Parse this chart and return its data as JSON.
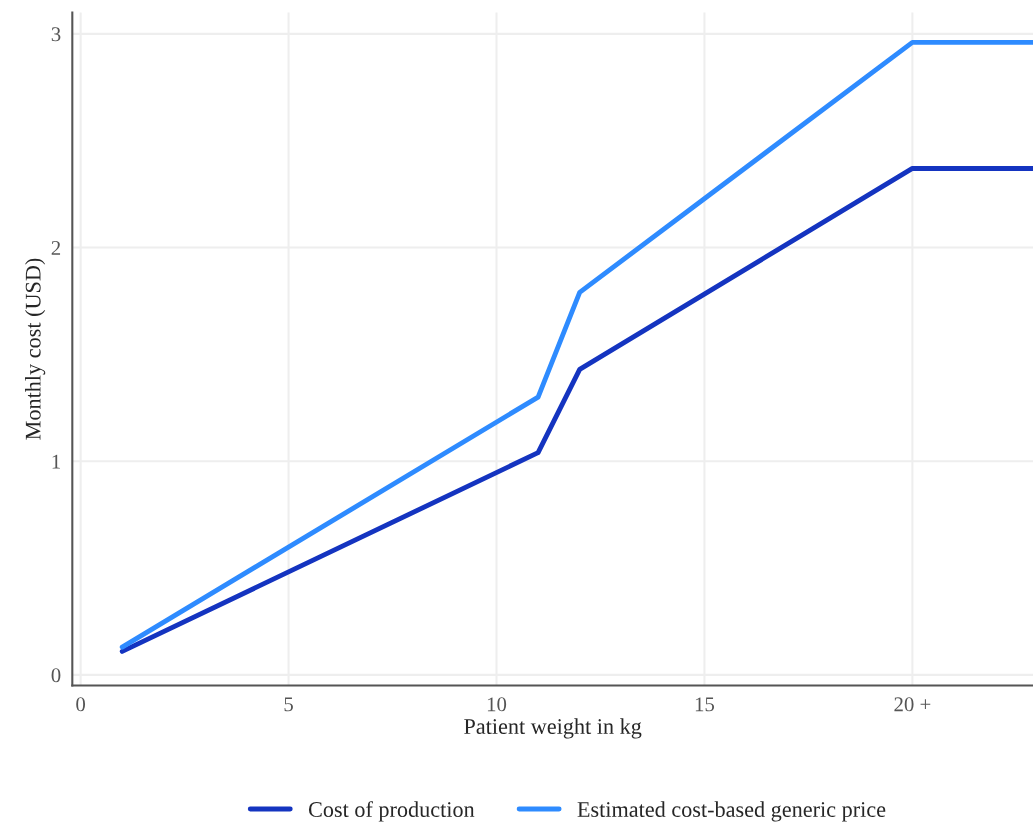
{
  "chart_data": {
    "type": "line",
    "xlabel": "Patient weight in kg",
    "ylabel": "Monthly cost (USD)",
    "x": [
      1,
      11,
      12,
      20,
      22.9
    ],
    "series": [
      {
        "name": "Cost of production",
        "color": "#1434c0",
        "values": [
          0.11,
          1.04,
          1.43,
          2.37,
          2.37
        ]
      },
      {
        "name": "Estimated cost-based generic price",
        "color": "#2e8bff",
        "values": [
          0.13,
          1.3,
          1.79,
          2.96,
          2.96
        ]
      }
    ],
    "xlim": [
      -0.2,
      22.9
    ],
    "ylim": [
      -0.05,
      3.1
    ],
    "xticks": [
      0,
      5,
      10,
      15,
      {
        "value": 20,
        "label": "20 +"
      }
    ],
    "yticks": [
      0,
      1,
      2,
      3
    ],
    "grid": true,
    "legend": "bottom",
    "marker": "none",
    "line_style": "solid"
  }
}
